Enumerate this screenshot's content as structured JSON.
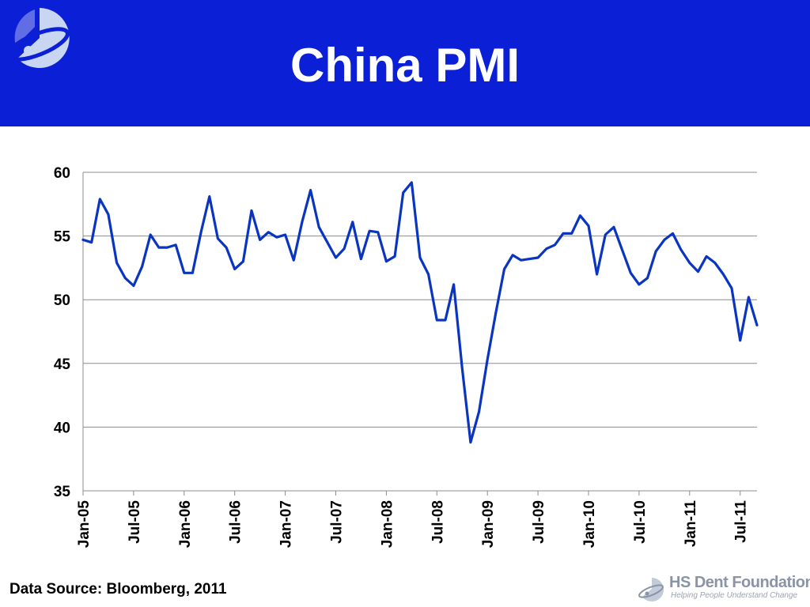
{
  "header": {
    "title": "China PMI",
    "brand_color": "#0b1fd6",
    "logo_icon": "hs-dent-swirl-logo-icon"
  },
  "chart_data": {
    "type": "line",
    "title": "",
    "xlabel": "",
    "ylabel": "",
    "ylim": [
      35,
      60
    ],
    "yticks": [
      "35",
      "40",
      "45",
      "50",
      "55",
      "60"
    ],
    "xtick_labels": [
      "Jan-05",
      "Jul-05",
      "Jan-06",
      "Jul-06",
      "Jan-07",
      "Jul-07",
      "Jan-08",
      "Jul-08",
      "Jan-09",
      "Jul-09",
      "Jan-10",
      "Jul-10",
      "Jan-11",
      "Jul-11"
    ],
    "grid": "horizontal",
    "line_color": "#0a35c0",
    "x": [
      "Jan-05",
      "Feb-05",
      "Mar-05",
      "Apr-05",
      "May-05",
      "Jun-05",
      "Jul-05",
      "Aug-05",
      "Sep-05",
      "Oct-05",
      "Nov-05",
      "Dec-05",
      "Jan-06",
      "Feb-06",
      "Mar-06",
      "Apr-06",
      "May-06",
      "Jun-06",
      "Jul-06",
      "Aug-06",
      "Sep-06",
      "Oct-06",
      "Nov-06",
      "Dec-06",
      "Jan-07",
      "Feb-07",
      "Mar-07",
      "Apr-07",
      "May-07",
      "Jun-07",
      "Jul-07",
      "Aug-07",
      "Sep-07",
      "Oct-07",
      "Nov-07",
      "Dec-07",
      "Jan-08",
      "Feb-08",
      "Mar-08",
      "Apr-08",
      "May-08",
      "Jun-08",
      "Jul-08",
      "Aug-08",
      "Sep-08",
      "Oct-08",
      "Nov-08",
      "Dec-08",
      "Jan-09",
      "Feb-09",
      "Mar-09",
      "Apr-09",
      "May-09",
      "Jun-09",
      "Jul-09",
      "Aug-09",
      "Sep-09",
      "Oct-09",
      "Nov-09",
      "Dec-09",
      "Jan-10",
      "Feb-10",
      "Mar-10",
      "Apr-10",
      "May-10",
      "Jun-10",
      "Jul-10",
      "Aug-10",
      "Sep-10",
      "Oct-10",
      "Nov-10",
      "Dec-10",
      "Jan-11",
      "Feb-11",
      "Mar-11",
      "Apr-11",
      "May-11",
      "Jun-11",
      "Jul-11",
      "Aug-11",
      "Sep-11"
    ],
    "series": [
      {
        "values": [
          54.7,
          54.5,
          57.9,
          56.7,
          52.9,
          51.7,
          51.1,
          52.6,
          55.1,
          54.1,
          54.1,
          54.3,
          52.1,
          52.1,
          55.3,
          58.1,
          54.8,
          54.1,
          52.4,
          53.0,
          57.0,
          54.7,
          55.3,
          54.9,
          55.1,
          53.1,
          56.1,
          58.6,
          55.7,
          54.5,
          53.3,
          54.0,
          56.1,
          53.2,
          55.4,
          55.3,
          53.0,
          53.4,
          58.4,
          59.2,
          53.3,
          52.0,
          48.4,
          48.4,
          51.2,
          44.6,
          38.8,
          41.2,
          45.3,
          49.0,
          52.4,
          53.5,
          53.1,
          53.2,
          53.3,
          54.0,
          54.3,
          55.2,
          55.2,
          56.6,
          55.8,
          52.0,
          55.1,
          55.7,
          53.9,
          52.1,
          51.2,
          51.7,
          53.8,
          54.7,
          55.2,
          53.9,
          52.9,
          52.2,
          53.4,
          52.9,
          52.0,
          50.9,
          46.8,
          50.2,
          48.0
        ]
      }
    ]
  },
  "footer": {
    "source": "Data Source: Bloomberg, 2011",
    "org_name": "HS Dent Foundation",
    "tagline": "Helping People Understand Change",
    "logo_icon": "hs-dent-small-logo-icon"
  }
}
